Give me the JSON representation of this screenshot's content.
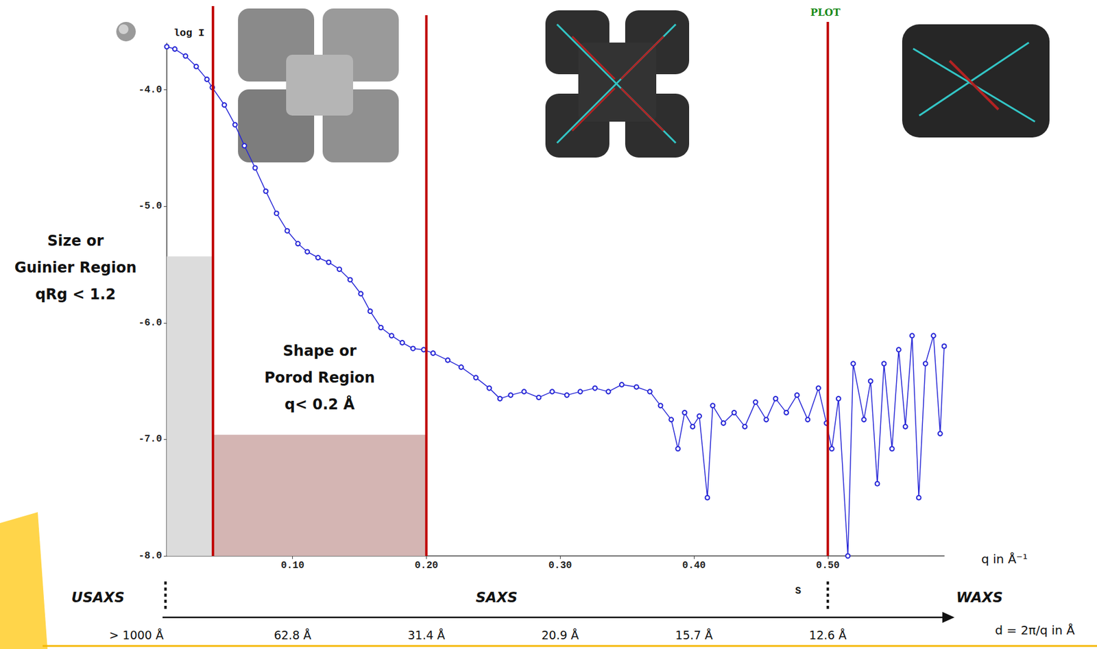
{
  "chart_data": {
    "type": "line",
    "y_label": "log I",
    "x_label": "S",
    "x_unit_label": "q in Å⁻¹",
    "header": "PLOT",
    "color": "#2626d6",
    "marker": "open circle",
    "line_style": "solid",
    "grid": false,
    "x": [
      0.006,
      0.012,
      0.02,
      0.028,
      0.036,
      0.04,
      0.049,
      0.057,
      0.064,
      0.072,
      0.08,
      0.088,
      0.096,
      0.104,
      0.111,
      0.119,
      0.127,
      0.135,
      0.143,
      0.151,
      0.158,
      0.166,
      0.174,
      0.182,
      0.19,
      0.198,
      0.205,
      0.216,
      0.226,
      0.237,
      0.247,
      0.255,
      0.263,
      0.273,
      0.284,
      0.294,
      0.305,
      0.315,
      0.326,
      0.336,
      0.346,
      0.357,
      0.367,
      0.375,
      0.383,
      0.388,
      0.393,
      0.399,
      0.404,
      0.41,
      0.414,
      0.422,
      0.43,
      0.438,
      0.446,
      0.454,
      0.461,
      0.469,
      0.477,
      0.485,
      0.493,
      0.499,
      0.503,
      0.508,
      0.515,
      0.519,
      0.527,
      0.532,
      0.537,
      0.542,
      0.548,
      0.553,
      0.558,
      0.563,
      0.568,
      0.573,
      0.579,
      0.584,
      0.587
    ],
    "values": [
      -3.63,
      -3.65,
      -3.71,
      -3.8,
      -3.91,
      -3.98,
      -4.13,
      -4.3,
      -4.48,
      -4.67,
      -4.87,
      -5.06,
      -5.21,
      -5.32,
      -5.39,
      -5.44,
      -5.48,
      -5.54,
      -5.63,
      -5.75,
      -5.9,
      -6.04,
      -6.11,
      -6.17,
      -6.22,
      -6.23,
      -6.26,
      -6.32,
      -6.38,
      -6.47,
      -6.56,
      -6.65,
      -6.62,
      -6.59,
      -6.64,
      -6.59,
      -6.62,
      -6.59,
      -6.56,
      -6.59,
      -6.53,
      -6.55,
      -6.59,
      -6.71,
      -6.83,
      -7.08,
      -6.77,
      -6.89,
      -6.8,
      -7.5,
      -6.71,
      -6.86,
      -6.77,
      -6.89,
      -6.68,
      -6.83,
      -6.65,
      -6.77,
      -6.62,
      -6.83,
      -6.56,
      -6.86,
      -7.08,
      -6.65,
      -8.0,
      -6.35,
      -6.83,
      -6.5,
      -7.38,
      -6.35,
      -7.08,
      -6.23,
      -6.89,
      -6.11,
      -7.5,
      -6.35,
      -6.11,
      -6.95,
      -6.2
    ],
    "xlim": [
      0.006,
      0.587
    ],
    "xticks": [
      {
        "value": 0.1,
        "label": "0.10"
      },
      {
        "value": 0.2,
        "label": "0.20"
      },
      {
        "value": 0.3,
        "label": "0.30"
      },
      {
        "value": 0.4,
        "label": "0.40"
      },
      {
        "value": 0.5,
        "label": "0.50"
      }
    ],
    "ylim": [
      -8,
      -3.6
    ],
    "yticks": [
      {
        "value": -4,
        "label": "-4.0"
      },
      {
        "value": -5,
        "label": "-5.0"
      },
      {
        "value": -6,
        "label": "-6.0"
      },
      {
        "value": -7,
        "label": "-7.0"
      },
      {
        "value": -8,
        "label": "-8.0"
      }
    ],
    "vlines": [
      {
        "x": 0.0405,
        "color": "#c00000"
      },
      {
        "x": 0.2,
        "color": "#c00000"
      },
      {
        "x": 0.5,
        "color": "#c00000"
      }
    ],
    "regions": [
      {
        "x": [
          0.006,
          0.0405
        ],
        "y": [
          -8,
          -5.43
        ],
        "color": "#dcdcdc",
        "label": [
          "Size or",
          "Guinier Region",
          "qRg < 1.2"
        ]
      },
      {
        "x": [
          0.0405,
          0.2
        ],
        "y": [
          -8,
          -6.96
        ],
        "color": "#d4b5b3",
        "label": [
          "Shape or",
          "Porod Region",
          "q< 0.2 Å"
        ]
      }
    ],
    "ranges": {
      "labels": [
        "USAXS",
        "SAXS",
        "WAXS"
      ],
      "bounds": [
        0.005,
        0.5
      ]
    },
    "d_axis": {
      "title": "d = 2π/q in Å",
      "labels": [
        "> 1000 Å",
        "62.8 Å",
        "31.4 Å",
        "20.9 Å",
        "15.7 Å",
        "12.6 Å"
      ]
    }
  }
}
